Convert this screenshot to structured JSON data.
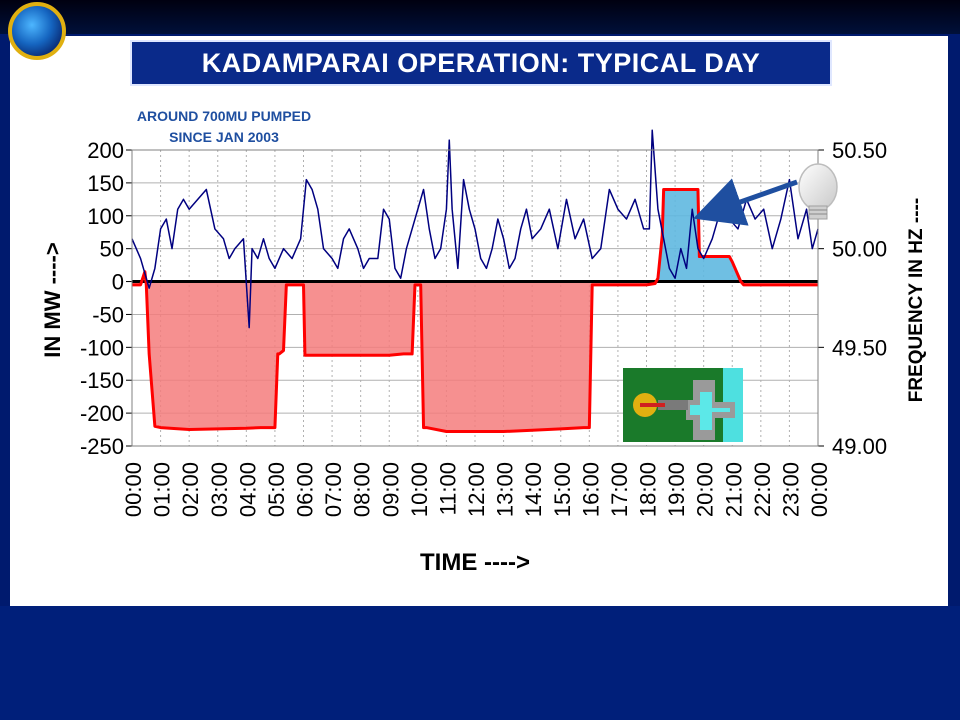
{
  "slide": {
    "title": "KADAMPARAI OPERATION: TYPICAL DAY",
    "note_line1": "AROUND 700MU PUMPED",
    "note_line2": "SINCE JAN 2003"
  },
  "colors": {
    "background": "#001a6e",
    "title_box": "#0a2a8a",
    "note_text": "#1f4fa0",
    "power_fill": "#f47c7c",
    "power_line": "#ff0000",
    "peak_fill": "#5fb8e0",
    "frequency_line": "#000080"
  },
  "icons": {
    "logo": "globe-logo",
    "bulb": "light-bulb-icon",
    "diagram": "pumped-storage-diagram"
  },
  "chart_data": {
    "type": "line",
    "xlabel": "TIME ---->",
    "ylabel": "IN MW ---->",
    "y2label": "FREQUENCY IN HZ ----",
    "x_ticks": [
      "00:00",
      "01:00",
      "02:00",
      "03:00",
      "04:00",
      "05:00",
      "06:00",
      "07:00",
      "08:00",
      "09:00",
      "10:00",
      "11:00",
      "12:00",
      "13:00",
      "14:00",
      "15:00",
      "16:00",
      "17:00",
      "18:00",
      "19:00",
      "20:00",
      "21:00",
      "22:00",
      "23:00",
      "00:00"
    ],
    "xlim": [
      0,
      24
    ],
    "y_ticks": [
      200,
      150,
      100,
      50,
      0,
      -50,
      -100,
      -150,
      -200,
      -250
    ],
    "ylim": [
      -250,
      200
    ],
    "y2_ticks": [
      "50.50",
      "50.00",
      "49.50",
      "49.00"
    ],
    "y2lim": [
      49.0,
      50.5
    ],
    "grid": true,
    "series": [
      {
        "axis": "left",
        "x": [
          0,
          0.3,
          0.45,
          0.5,
          0.6,
          0.8,
          1.0,
          2.0,
          3.0,
          4.0,
          4.5,
          5.0,
          5.1,
          5.15,
          5.3,
          5.4,
          5.6,
          5.8,
          6.0,
          6.05,
          6.2,
          7.0,
          8.0,
          9.0,
          9.5,
          9.8,
          9.9,
          10.0,
          10.1,
          10.2,
          10.3,
          11.0,
          12.0,
          13.0,
          14.0,
          15.0,
          15.8,
          16.0,
          16.1,
          16.2,
          16.3,
          18.0,
          18.3,
          18.4,
          18.55,
          18.6,
          18.8,
          19.0,
          19.2,
          19.5,
          19.8,
          19.85,
          20.0,
          20.5,
          20.9,
          21.0,
          21.3,
          21.4,
          22.0,
          23.0,
          23.5,
          24.0
        ],
        "y": [
          -5,
          -5,
          15,
          -5,
          -110,
          -220,
          -222,
          -225,
          -224,
          -223,
          -222,
          -222,
          -110,
          -110,
          -105,
          -5,
          -5,
          -5,
          -5,
          -112,
          -112,
          -112,
          -112,
          -112,
          -110,
          -110,
          -5,
          -5,
          -5,
          -222,
          -222,
          -228,
          -228,
          -228,
          -226,
          -224,
          -222,
          -222,
          -5,
          -5,
          -5,
          -5,
          -3,
          5,
          70,
          140,
          140,
          140,
          140,
          140,
          140,
          38,
          38,
          38,
          38,
          30,
          0,
          -5,
          -5,
          -5,
          -5,
          -5
        ]
      },
      {
        "axis": "right",
        "x": [
          0,
          0.3,
          0.6,
          0.8,
          1.0,
          1.2,
          1.4,
          1.6,
          1.8,
          2.0,
          2.3,
          2.6,
          2.9,
          3.2,
          3.4,
          3.6,
          3.9,
          4.1,
          4.2,
          4.4,
          4.6,
          4.8,
          5.0,
          5.3,
          5.6,
          5.9,
          6.1,
          6.3,
          6.5,
          6.7,
          7.0,
          7.2,
          7.4,
          7.6,
          7.9,
          8.1,
          8.3,
          8.6,
          8.8,
          9.0,
          9.2,
          9.4,
          9.6,
          9.8,
          10.0,
          10.2,
          10.4,
          10.6,
          10.8,
          11.0,
          11.1,
          11.2,
          11.4,
          11.6,
          11.8,
          12.0,
          12.2,
          12.4,
          12.6,
          12.8,
          13.0,
          13.2,
          13.4,
          13.6,
          13.8,
          14.0,
          14.3,
          14.6,
          14.9,
          15.2,
          15.5,
          15.8,
          16.1,
          16.4,
          16.7,
          17.0,
          17.3,
          17.6,
          17.9,
          18.1,
          18.2,
          18.4,
          18.6,
          18.8,
          19.0,
          19.2,
          19.4,
          19.6,
          19.8,
          20.0,
          20.3,
          20.6,
          20.9,
          21.2,
          21.5,
          21.8,
          22.1,
          22.4,
          22.7,
          23.0,
          23.3,
          23.6,
          23.8,
          24.0
        ],
        "y": [
          50.05,
          49.95,
          49.8,
          49.9,
          50.1,
          50.15,
          50.0,
          50.2,
          50.25,
          50.2,
          50.25,
          50.3,
          50.1,
          50.05,
          49.95,
          50.0,
          50.05,
          49.6,
          50.0,
          49.95,
          50.05,
          49.95,
          49.9,
          50.0,
          49.95,
          50.05,
          50.35,
          50.3,
          50.2,
          50.0,
          49.95,
          49.9,
          50.05,
          50.1,
          50.0,
          49.9,
          49.95,
          49.95,
          50.2,
          50.15,
          49.9,
          49.85,
          50.0,
          50.1,
          50.2,
          50.3,
          50.1,
          49.95,
          50.0,
          50.2,
          50.55,
          50.2,
          49.9,
          50.35,
          50.2,
          50.1,
          49.95,
          49.9,
          50.0,
          50.15,
          50.05,
          49.9,
          49.95,
          50.1,
          50.2,
          50.05,
          50.1,
          50.2,
          50.0,
          50.25,
          50.05,
          50.15,
          49.95,
          50.0,
          50.3,
          50.2,
          50.15,
          50.25,
          50.1,
          50.1,
          50.6,
          50.2,
          50.05,
          49.9,
          49.85,
          50.0,
          49.9,
          50.2,
          50.0,
          49.95,
          50.05,
          50.2,
          50.15,
          50.1,
          50.25,
          50.15,
          50.2,
          50.0,
          50.15,
          50.35,
          50.05,
          50.2,
          50.0,
          50.1
        ]
      }
    ]
  }
}
